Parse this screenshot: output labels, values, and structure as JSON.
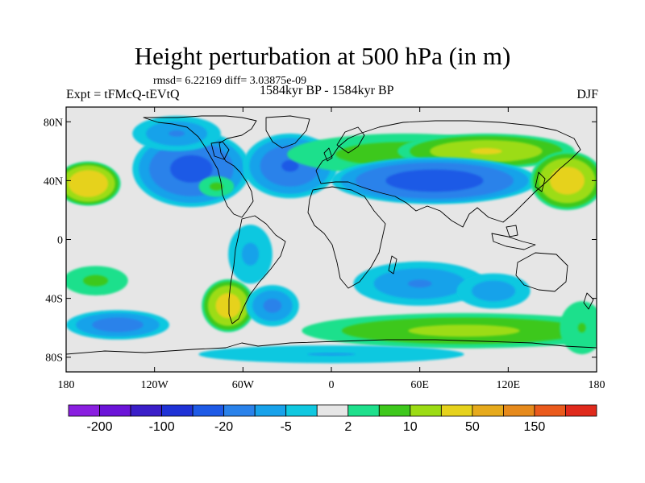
{
  "title": "Height perturbation at 500 hPa (in m)",
  "stats": "rmsd= 6.22169 diff= 3.03875e-09",
  "expt": "Expt = tFMcQ-tEVtQ",
  "period": "1584kyr BP - 1584kyr BP",
  "season": "DJF",
  "map_data": {
    "type": "filled-contour",
    "projection": "cylindrical-equidistant",
    "lon_range": [
      -180,
      180
    ],
    "lat_range": [
      -90,
      90
    ],
    "x_ticks": [
      {
        "lon": -180,
        "label": "180"
      },
      {
        "lon": -120,
        "label": "120W"
      },
      {
        "lon": -60,
        "label": "60W"
      },
      {
        "lon": 0,
        "label": "0"
      },
      {
        "lon": 60,
        "label": "60E"
      },
      {
        "lon": 120,
        "label": "120E"
      },
      {
        "lon": 180,
        "label": "180"
      }
    ],
    "y_ticks": [
      {
        "lat": 80,
        "label": "80N"
      },
      {
        "lat": 40,
        "label": "40N"
      },
      {
        "lat": 0,
        "label": "0"
      },
      {
        "lat": -40,
        "label": "40S"
      },
      {
        "lat": -80,
        "label": "80S"
      }
    ],
    "anomaly_blobs": [
      {
        "lon": -165,
        "lat": 38,
        "rlon": 22,
        "rlat": 15,
        "value": 40
      },
      {
        "lon": -95,
        "lat": 48,
        "rlon": 40,
        "rlat": 26,
        "value": -25
      },
      {
        "lon": -105,
        "lat": 72,
        "rlon": 30,
        "rlat": 12,
        "value": -10
      },
      {
        "lon": -78,
        "lat": 36,
        "rlon": 12,
        "rlat": 7,
        "value": 6
      },
      {
        "lon": -28,
        "lat": 50,
        "rlon": 32,
        "rlat": 22,
        "value": -20
      },
      {
        "lon": 50,
        "lat": 58,
        "rlon": 80,
        "rlat": 14,
        "value": 8
      },
      {
        "lon": 105,
        "lat": 60,
        "rlon": 60,
        "rlat": 12,
        "value": 20
      },
      {
        "lon": 70,
        "lat": 40,
        "rlon": 70,
        "rlat": 16,
        "value": -30
      },
      {
        "lon": 160,
        "lat": 40,
        "rlon": 25,
        "rlat": 20,
        "value": 30
      },
      {
        "lon": -160,
        "lat": -28,
        "rlon": 22,
        "rlat": 10,
        "value": 6
      },
      {
        "lon": -55,
        "lat": -10,
        "rlon": 15,
        "rlat": 20,
        "value": -6
      },
      {
        "lon": -70,
        "lat": -45,
        "rlon": 18,
        "rlat": 18,
        "value": 30
      },
      {
        "lon": -145,
        "lat": -58,
        "rlon": 35,
        "rlat": 10,
        "value": -15
      },
      {
        "lon": -40,
        "lat": -45,
        "rlon": 18,
        "rlat": 14,
        "value": -12
      },
      {
        "lon": 60,
        "lat": -30,
        "rlon": 45,
        "rlat": 15,
        "value": -10
      },
      {
        "lon": 110,
        "lat": -35,
        "rlon": 25,
        "rlat": 12,
        "value": -8
      },
      {
        "lon": 90,
        "lat": -62,
        "rlon": 110,
        "rlat": 12,
        "value": 12
      },
      {
        "lon": 0,
        "lat": -78,
        "rlon": 90,
        "rlat": 6,
        "value": -5
      },
      {
        "lon": 170,
        "lat": -60,
        "rlon": 15,
        "rlat": 18,
        "value": 5
      }
    ]
  },
  "colorbar": {
    "colors": [
      "#8a1fe0",
      "#6b14d8",
      "#3a1ec8",
      "#1f32d6",
      "#1e5ae6",
      "#2a82ea",
      "#18a2ea",
      "#10c8e0",
      "#e6e6e6",
      "#1ee08c",
      "#3ec81c",
      "#9cdc14",
      "#e6d21c",
      "#e6aa1c",
      "#e68a1c",
      "#ea5a1c",
      "#e02a1c"
    ],
    "labels": [
      {
        "boundary": 1,
        "text": "-200"
      },
      {
        "boundary": 3,
        "text": "-100"
      },
      {
        "boundary": 5,
        "text": "-20"
      },
      {
        "boundary": 7,
        "text": "-5"
      },
      {
        "boundary": 9,
        "text": "2"
      },
      {
        "boundary": 11,
        "text": "10"
      },
      {
        "boundary": 13,
        "text": "50"
      },
      {
        "boundary": 15,
        "text": "150"
      }
    ],
    "boundaries": [
      -200,
      -150,
      -100,
      -50,
      -20,
      -10,
      -5,
      -2,
      2,
      5,
      10,
      20,
      50,
      100,
      150,
      200
    ]
  }
}
